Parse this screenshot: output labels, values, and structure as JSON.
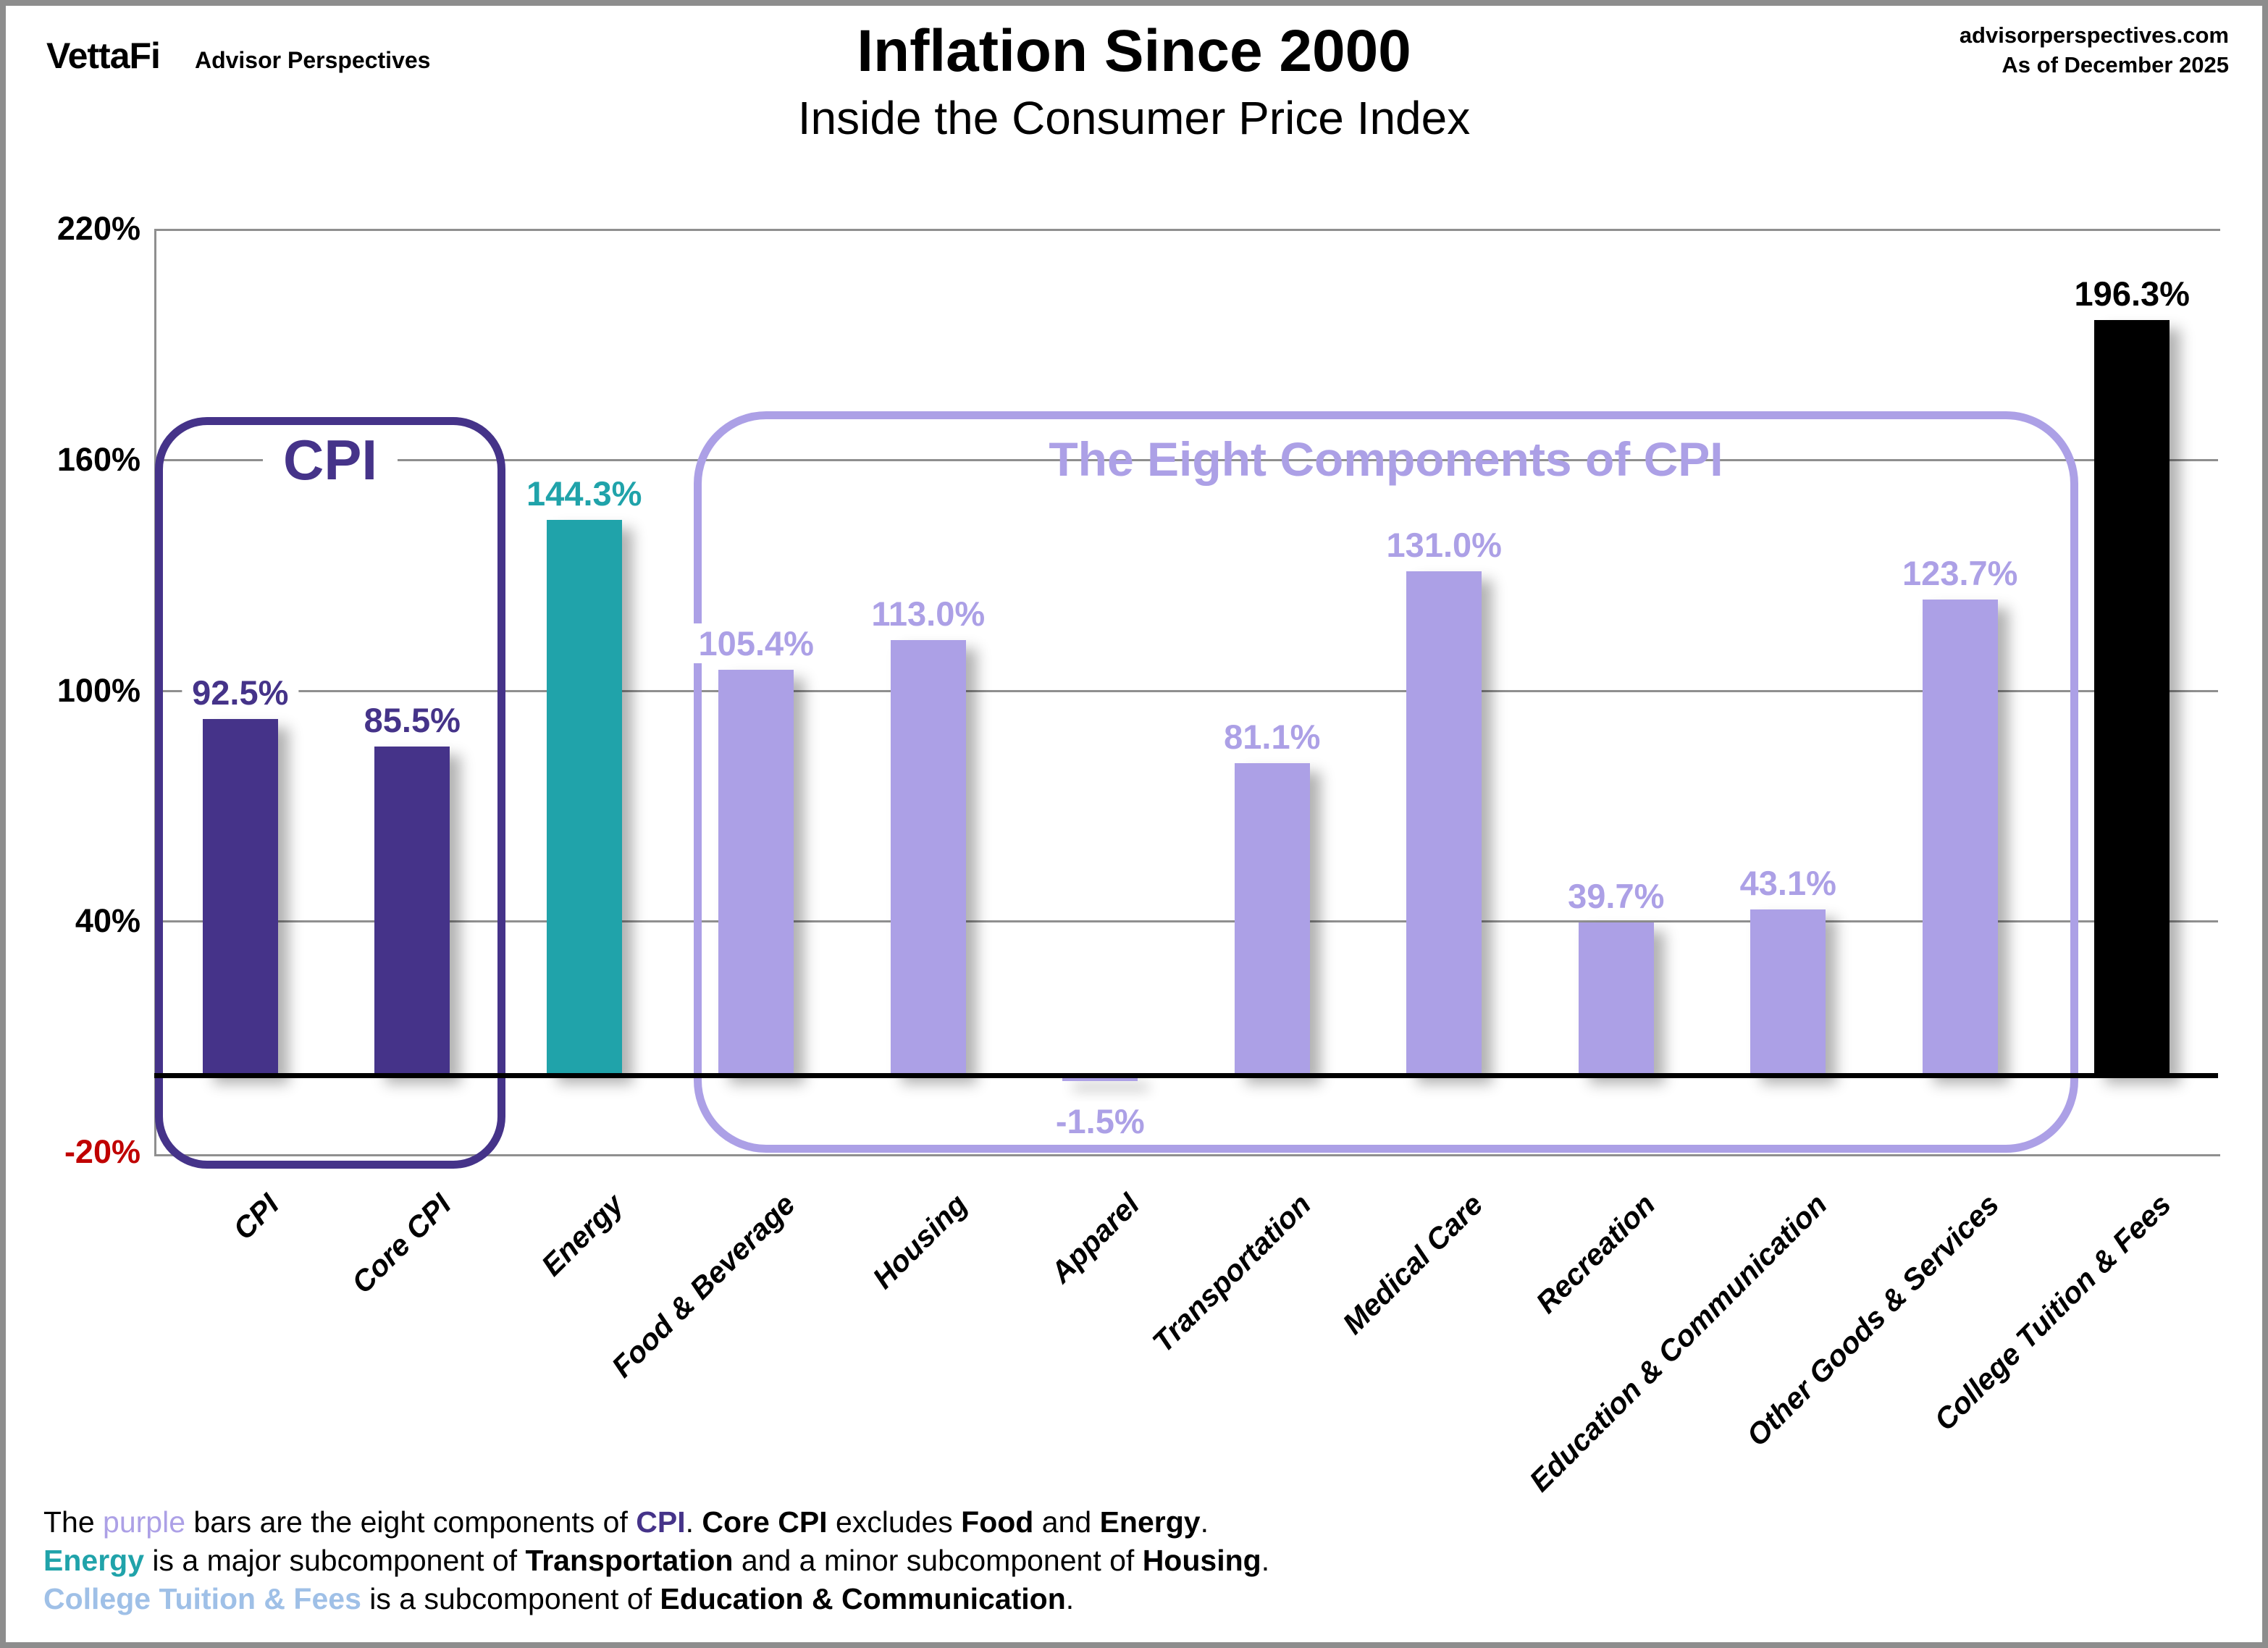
{
  "header": {
    "logo": "VettaFi",
    "logo_suffix": "Advisor Perspectives",
    "title": "Inflation Since 2000",
    "subtitle": "Inside the Consumer Price Index",
    "source": "advisorperspectives.com",
    "as_of": "As of December 2025"
  },
  "chart_data": {
    "type": "bar",
    "title": "Inflation Since 2000",
    "subtitle": "Inside the Consumer Price Index",
    "xlabel": "",
    "ylabel": "",
    "ylim": [
      -20,
      220
    ],
    "grid": true,
    "gridline_values": [
      160,
      100,
      40
    ],
    "yticks": [
      {
        "label": "220%",
        "value": 220,
        "color": "#000000"
      },
      {
        "label": "160%",
        "value": 160,
        "color": "#000000"
      },
      {
        "label": "100%",
        "value": 100,
        "color": "#000000"
      },
      {
        "label": "40%",
        "value": 40,
        "color": "#000000"
      },
      {
        "label": "-20%",
        "value": -20,
        "color": "#C00000"
      }
    ],
    "categories": [
      "CPI",
      "Core CPI",
      "Energy",
      "Food & Beverage",
      "Housing",
      "Apparel",
      "Transportation",
      "Medical Care",
      "Recreation",
      "Education & Communication",
      "Other Goods & Services",
      "College Tuition & Fees"
    ],
    "series": [
      {
        "name": "Inflation since 2000",
        "values": [
          92.5,
          85.5,
          144.3,
          105.4,
          113.0,
          -1.5,
          81.1,
          131.0,
          39.7,
          43.1,
          123.7,
          196.3
        ]
      }
    ],
    "value_labels": [
      "92.5%",
      "85.5%",
      "144.3%",
      "105.4%",
      "113.0%",
      "-1.5%",
      "81.1%",
      "131.0%",
      "39.7%",
      "43.1%",
      "123.7%",
      "196.3%"
    ],
    "bar_groups": [
      "cpi",
      "cpi",
      "energy",
      "component",
      "component",
      "component",
      "component",
      "component",
      "component",
      "component",
      "component",
      "tuition"
    ],
    "group_colors": {
      "cpi": "#453389",
      "energy": "#20A3AA",
      "component": "#ACA0E6",
      "tuition": "#000000"
    },
    "annotations": {
      "cpi_box_label": "CPI",
      "components_box_label": "The Eight Components of CPI"
    }
  },
  "footer": {
    "lines": [
      [
        {
          "t": "The ",
          "s": "n"
        },
        {
          "t": "purple",
          "s": "purple"
        },
        {
          "t": " bars are the eight components of ",
          "s": "n"
        },
        {
          "t": "CPI",
          "s": "cpi"
        },
        {
          "t": ". ",
          "s": "n"
        },
        {
          "t": "Core CPI",
          "s": "b"
        },
        {
          "t": " excludes ",
          "s": "n"
        },
        {
          "t": "Food",
          "s": "b"
        },
        {
          "t": " and ",
          "s": "n"
        },
        {
          "t": "Energy",
          "s": "b"
        },
        {
          "t": ".",
          "s": "n"
        }
      ],
      [
        {
          "t": "Energy",
          "s": "teal"
        },
        {
          "t": " is a major subcomponent of ",
          "s": "n"
        },
        {
          "t": "Transportation",
          "s": "b"
        },
        {
          "t": " and a minor subcomponent of ",
          "s": "n"
        },
        {
          "t": "Housing",
          "s": "b"
        },
        {
          "t": ".",
          "s": "n"
        }
      ],
      [
        {
          "t": "College Tuition & Fees",
          "s": "blue"
        },
        {
          "t": " is a subcomponent of ",
          "s": "n"
        },
        {
          "t": "Education & Communication",
          "s": "b"
        },
        {
          "t": ".",
          "s": "n"
        }
      ]
    ]
  },
  "colors": {
    "dark_purple": "#453389",
    "light_purple": "#ACA0E6",
    "teal": "#20A3AA",
    "light_blue": "#9FC0E7",
    "red": "#C00000",
    "gridline_gray": "#8f8f8f",
    "black": "#000000"
  }
}
